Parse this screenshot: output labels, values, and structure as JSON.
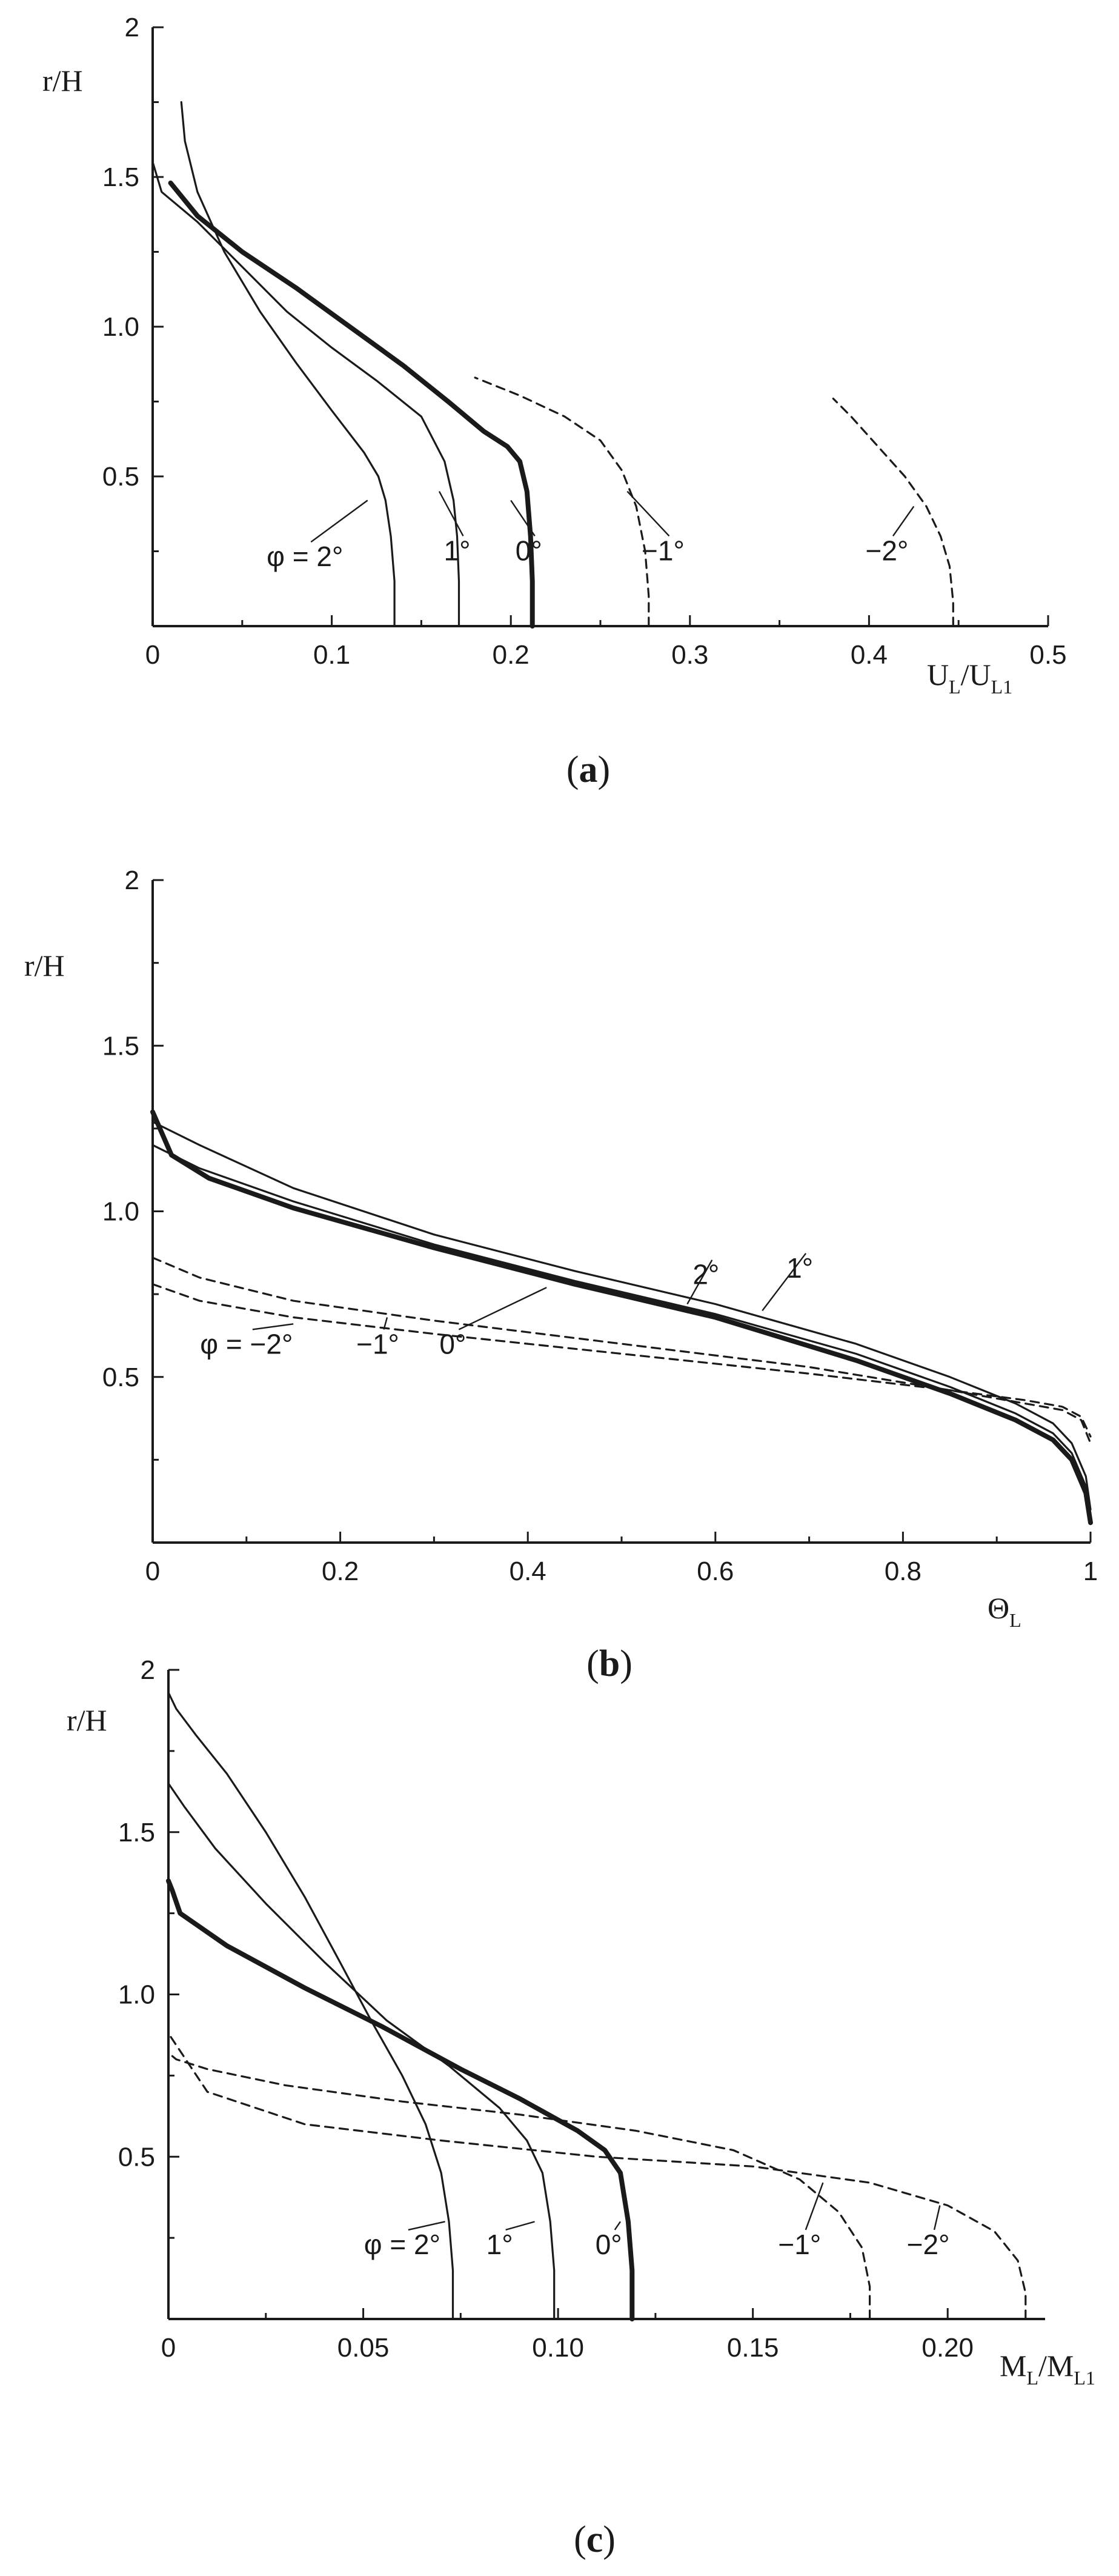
{
  "chart_data": [
    {
      "type": "line",
      "caption": "a",
      "xlabel": "U",
      "xlabel_sub": "L",
      "xlabel_rest": "/U",
      "xlabel_sub2": "L1",
      "ylabel": "r/H",
      "xlim": [
        0,
        0.5
      ],
      "ylim": [
        0,
        2
      ],
      "xticks": [
        "0",
        "0.1",
        "0.2",
        "0.3",
        "0.4",
        "0.5"
      ],
      "xtick_values": [
        0,
        0.1,
        0.2,
        0.3,
        0.4,
        0.5
      ],
      "yticks": [
        "0.5",
        "1.0",
        "1.5",
        "2"
      ],
      "ytick_values": [
        0.5,
        1.0,
        1.5,
        2
      ],
      "series": [
        {
          "name": "φ = 2°",
          "style": "solid",
          "x": [
            0.135,
            0.135,
            0.133,
            0.13,
            0.126,
            0.118,
            0.1,
            0.08,
            0.06,
            0.04,
            0.025,
            0.018,
            0.016
          ],
          "y": [
            0,
            0.15,
            0.3,
            0.42,
            0.5,
            0.58,
            0.72,
            0.88,
            1.05,
            1.25,
            1.45,
            1.62,
            1.75
          ],
          "label_at": [
            0.12,
            0.42
          ],
          "label_text": [
            0.085,
            0.2
          ]
        },
        {
          "name": "1°",
          "style": "solid",
          "x": [
            0.171,
            0.171,
            0.17,
            0.168,
            0.163,
            0.15,
            0.125,
            0.1,
            0.075,
            0.05,
            0.025,
            0.005,
            0.0
          ],
          "y": [
            0,
            0.15,
            0.3,
            0.42,
            0.55,
            0.7,
            0.82,
            0.93,
            1.05,
            1.2,
            1.35,
            1.45,
            1.55
          ],
          "label_at": [
            0.16,
            0.45
          ],
          "label_text": [
            0.17,
            0.22
          ]
        },
        {
          "name": "0°",
          "style": "bold",
          "x": [
            0.212,
            0.212,
            0.211,
            0.209,
            0.205,
            0.198,
            0.185,
            0.165,
            0.14,
            0.11,
            0.08,
            0.05,
            0.025,
            0.01
          ],
          "y": [
            0,
            0.15,
            0.3,
            0.45,
            0.55,
            0.6,
            0.65,
            0.75,
            0.87,
            1.0,
            1.13,
            1.25,
            1.37,
            1.48
          ],
          "label_at": [
            0.2,
            0.42
          ],
          "label_text": [
            0.21,
            0.22
          ]
        },
        {
          "name": "−1°",
          "style": "dashed",
          "x": [
            0.277,
            0.277,
            0.275,
            0.27,
            0.262,
            0.25,
            0.23,
            0.205,
            0.18
          ],
          "y": [
            0,
            0.1,
            0.25,
            0.4,
            0.52,
            0.62,
            0.7,
            0.77,
            0.83
          ],
          "label_at": [
            0.265,
            0.45
          ],
          "label_text": [
            0.285,
            0.22
          ]
        },
        {
          "name": "−2°",
          "style": "dashed",
          "x": [
            0.447,
            0.447,
            0.445,
            0.44,
            0.432,
            0.42,
            0.405,
            0.39,
            0.38
          ],
          "y": [
            0,
            0.08,
            0.2,
            0.3,
            0.4,
            0.5,
            0.6,
            0.7,
            0.76
          ],
          "label_at": [
            0.425,
            0.4
          ],
          "label_text": [
            0.41,
            0.22
          ]
        }
      ]
    },
    {
      "type": "line",
      "caption": "b",
      "xlabel": "Θ",
      "xlabel_sub": "L",
      "xlabel_rest": "",
      "xlabel_sub2": "",
      "ylabel": "r/H",
      "xlim": [
        0,
        1
      ],
      "ylim": [
        0,
        2
      ],
      "xticks": [
        "0",
        "0.2",
        "0.4",
        "0.6",
        "0.8",
        "1"
      ],
      "xtick_values": [
        0,
        0.2,
        0.4,
        0.6,
        0.8,
        1
      ],
      "yticks": [
        "0.5",
        "1.0",
        "1.5",
        "2"
      ],
      "ytick_values": [
        0.5,
        1.0,
        1.5,
        2
      ],
      "series": [
        {
          "name": "2°",
          "style": "solid",
          "x": [
            0,
            0.05,
            0.15,
            0.3,
            0.45,
            0.6,
            0.75,
            0.85,
            0.92,
            0.96,
            0.98,
            0.995,
            1.0
          ],
          "y": [
            1.27,
            1.2,
            1.07,
            0.93,
            0.82,
            0.72,
            0.6,
            0.5,
            0.42,
            0.36,
            0.3,
            0.2,
            0.1
          ],
          "label_at": [
            0.57,
            0.72
          ],
          "label_text": [
            0.59,
            0.78
          ]
        },
        {
          "name": "1°",
          "style": "solid",
          "x": [
            0,
            0.05,
            0.15,
            0.3,
            0.45,
            0.6,
            0.75,
            0.85,
            0.92,
            0.96,
            0.98,
            0.995,
            1.0
          ],
          "y": [
            1.2,
            1.13,
            1.03,
            0.9,
            0.79,
            0.69,
            0.57,
            0.47,
            0.39,
            0.33,
            0.27,
            0.17,
            0.07
          ],
          "label_at": [
            0.65,
            0.7
          ],
          "label_text": [
            0.69,
            0.8
          ]
        },
        {
          "name": "0°",
          "style": "bold",
          "x": [
            0,
            0.02,
            0.06,
            0.15,
            0.3,
            0.45,
            0.6,
            0.75,
            0.85,
            0.92,
            0.96,
            0.98,
            0.995,
            1.0
          ],
          "y": [
            1.3,
            1.17,
            1.1,
            1.01,
            0.89,
            0.78,
            0.68,
            0.55,
            0.45,
            0.37,
            0.31,
            0.25,
            0.15,
            0.06
          ],
          "label_at": [
            0.42,
            0.77
          ],
          "label_text": [
            0.32,
            0.57
          ]
        },
        {
          "name": "−1°",
          "style": "dashed",
          "x": [
            0,
            0.05,
            0.15,
            0.3,
            0.5,
            0.7,
            0.85,
            0.93,
            0.97,
            0.99,
            1.0
          ],
          "y": [
            0.86,
            0.8,
            0.73,
            0.67,
            0.6,
            0.53,
            0.46,
            0.42,
            0.4,
            0.37,
            0.3
          ],
          "label_at": [
            0.25,
            0.68
          ],
          "label_text": [
            0.24,
            0.57
          ]
        },
        {
          "name": "φ = −2°",
          "style": "dashed",
          "x": [
            0,
            0.05,
            0.15,
            0.3,
            0.5,
            0.7,
            0.85,
            0.93,
            0.97,
            0.99,
            1.0
          ],
          "y": [
            0.78,
            0.73,
            0.68,
            0.63,
            0.57,
            0.51,
            0.46,
            0.43,
            0.41,
            0.38,
            0.32
          ],
          "label_at": [
            0.15,
            0.66
          ],
          "label_text": [
            0.1,
            0.57
          ]
        }
      ]
    },
    {
      "type": "line",
      "caption": "c",
      "xlabel": "M",
      "xlabel_sub": "L",
      "xlabel_rest": "/M",
      "xlabel_sub2": "L1",
      "ylabel": "r/H",
      "xlim": [
        0,
        0.225
      ],
      "ylim": [
        0,
        2
      ],
      "xticks": [
        "0",
        "0.05",
        "0.10",
        "0.15",
        "0.20"
      ],
      "xtick_values": [
        0,
        0.05,
        0.1,
        0.15,
        0.2
      ],
      "yticks": [
        "0.5",
        "1.0",
        "1.5",
        "2"
      ],
      "ytick_values": [
        0.5,
        1.0,
        1.5,
        2
      ],
      "series": [
        {
          "name": "φ = 2°",
          "style": "solid",
          "x": [
            0.073,
            0.073,
            0.072,
            0.07,
            0.066,
            0.06,
            0.052,
            0.044,
            0.035,
            0.025,
            0.015,
            0.007,
            0.002,
            0.0
          ],
          "y": [
            0,
            0.15,
            0.3,
            0.45,
            0.6,
            0.75,
            0.92,
            1.1,
            1.3,
            1.5,
            1.68,
            1.8,
            1.88,
            1.93
          ],
          "label_at": [
            0.071,
            0.3
          ],
          "label_text": [
            0.06,
            0.2
          ]
        },
        {
          "name": "1°",
          "style": "solid",
          "x": [
            0.099,
            0.099,
            0.098,
            0.096,
            0.092,
            0.085,
            0.072,
            0.056,
            0.04,
            0.025,
            0.012,
            0.004,
            0.0
          ],
          "y": [
            0,
            0.15,
            0.3,
            0.45,
            0.55,
            0.65,
            0.78,
            0.92,
            1.1,
            1.28,
            1.45,
            1.58,
            1.65
          ],
          "label_at": [
            0.094,
            0.3
          ],
          "label_text": [
            0.085,
            0.2
          ]
        },
        {
          "name": "0°",
          "style": "bold",
          "x": [
            0.119,
            0.119,
            0.118,
            0.116,
            0.112,
            0.105,
            0.09,
            0.075,
            0.055,
            0.035,
            0.015,
            0.003,
            0.001,
            0.0
          ],
          "y": [
            0,
            0.15,
            0.3,
            0.45,
            0.52,
            0.58,
            0.68,
            0.77,
            0.9,
            1.02,
            1.15,
            1.25,
            1.32,
            1.35
          ],
          "label_at": [
            0.116,
            0.3
          ],
          "label_text": [
            0.113,
            0.2
          ]
        },
        {
          "name": "−1°",
          "style": "dashed",
          "x": [
            0.18,
            0.18,
            0.178,
            0.172,
            0.162,
            0.145,
            0.12,
            0.09,
            0.06,
            0.03,
            0.01,
            0.002,
            0.0
          ],
          "y": [
            0,
            0.1,
            0.22,
            0.33,
            0.43,
            0.52,
            0.58,
            0.63,
            0.67,
            0.72,
            0.77,
            0.8,
            0.82
          ],
          "label_at": [
            0.168,
            0.42
          ],
          "label_text": [
            0.162,
            0.2
          ]
        },
        {
          "name": "−2°",
          "style": "dashed",
          "x": [
            0.22,
            0.22,
            0.218,
            0.212,
            0.2,
            0.18,
            0.15,
            0.11,
            0.07,
            0.035,
            0.01,
            0.0
          ],
          "y": [
            0,
            0.08,
            0.18,
            0.27,
            0.35,
            0.42,
            0.47,
            0.5,
            0.55,
            0.6,
            0.7,
            0.88
          ],
          "label_at": [
            0.198,
            0.35
          ],
          "label_text": [
            0.195,
            0.2
          ]
        }
      ]
    }
  ]
}
